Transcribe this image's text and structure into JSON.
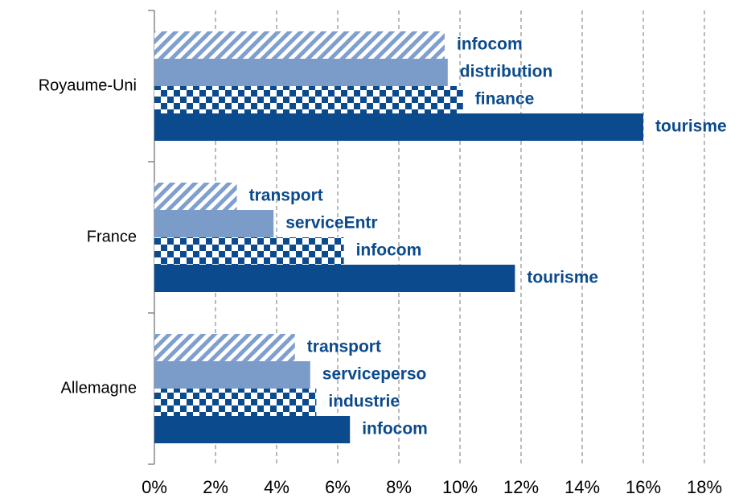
{
  "chart_data": {
    "type": "barh",
    "categories": [
      "Royaume-Uni",
      "France",
      "Allemagne"
    ],
    "series": [
      {
        "color": "#7f9fcf",
        "pattern": "hatch",
        "values": [
          9.5,
          2.7,
          4.6
        ],
        "bar_labels": [
          "infocom",
          "transport",
          "transport"
        ]
      },
      {
        "color": "#7b9cc9",
        "pattern": "solid",
        "values": [
          9.6,
          3.9,
          5.1
        ],
        "bar_labels": [
          "distribution",
          "serviceEntr",
          "serviceperso"
        ]
      },
      {
        "color": "#0b4a8c",
        "pattern": "check",
        "values": [
          10.1,
          6.2,
          5.3
        ],
        "bar_labels": [
          "finance",
          "infocom",
          "industrie"
        ]
      },
      {
        "color": "#0b4a8c",
        "pattern": "solid",
        "values": [
          16.0,
          11.8,
          6.4
        ],
        "bar_labels": [
          "tourisme",
          "tourisme",
          "infocom"
        ]
      }
    ],
    "label_color": "#0b4a8c",
    "xlim": [
      0,
      18
    ],
    "xticks": [
      {
        "value": 0,
        "label": "0%"
      },
      {
        "value": 2,
        "label": "2%"
      },
      {
        "value": 4,
        "label": "4%"
      },
      {
        "value": 6,
        "label": "6%"
      },
      {
        "value": 8,
        "label": "8%"
      },
      {
        "value": 10,
        "label": "10%"
      },
      {
        "value": 12,
        "label": "12%"
      },
      {
        "value": 14,
        "label": "14%"
      },
      {
        "value": 16,
        "label": "16%"
      },
      {
        "value": 18,
        "label": "18%"
      }
    ],
    "grid": true
  }
}
